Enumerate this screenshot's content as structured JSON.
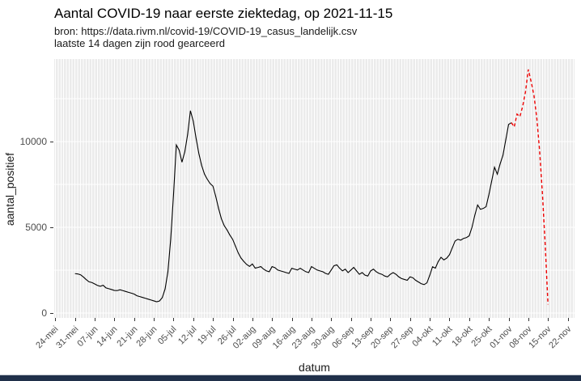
{
  "chart_data": {
    "type": "line",
    "title": "Aantal COVID-19 naar eerste ziektedag, op 2021-11-15",
    "subtitle_source": "bron: https://data.rivm.nl/covid-19/COVID-19_casus_landelijk.csv",
    "subtitle_note": "laatste 14 dagen zijn rood gearceerd",
    "xlabel": "datum",
    "ylabel": "aantal_positief",
    "legend": "none",
    "grid": "white gridlines on grey panel, daily vertical minor lines",
    "x_start_date": "2021-05-24",
    "x_tick_interval_days": 7,
    "x_tick_labels": [
      "24-mei",
      "31-mei",
      "07-jun",
      "14-jun",
      "21-jun",
      "28-jun",
      "05-jul",
      "12-jul",
      "19-jul",
      "26-jul",
      "02-aug",
      "09-aug",
      "16-aug",
      "23-aug",
      "30-aug",
      "06-sep",
      "13-sep",
      "20-sep",
      "27-sep",
      "04-okt",
      "11-okt",
      "18-okt",
      "25-okt",
      "01-nov",
      "08-nov",
      "15-nov",
      "22-nov"
    ],
    "y_ticks": [
      0,
      5000,
      10000
    ],
    "y_tick_labels": [
      "0",
      "5000",
      "10000"
    ],
    "y_minor_gridlines": [
      2500,
      7500,
      12500
    ],
    "ylim": [
      -300,
      14800
    ],
    "colors": {
      "series": "#000000",
      "recent": "#EE0000",
      "panel_bg": "#EBEBEB",
      "gridline": "#FFFFFF",
      "tick_label": "#4D4D4D",
      "bottom_bar": "#20304A"
    },
    "series": [
      {
        "name": "aantal_positief",
        "style": "solid",
        "color_key": "series",
        "points": [
          [
            "2021-05-31",
            2300
          ],
          [
            "2021-06-01",
            2280
          ],
          [
            "2021-06-02",
            2230
          ],
          [
            "2021-06-03",
            2100
          ],
          [
            "2021-06-04",
            1950
          ],
          [
            "2021-06-05",
            1820
          ],
          [
            "2021-06-06",
            1780
          ],
          [
            "2021-06-07",
            1700
          ],
          [
            "2021-06-08",
            1610
          ],
          [
            "2021-06-09",
            1560
          ],
          [
            "2021-06-10",
            1620
          ],
          [
            "2021-06-11",
            1470
          ],
          [
            "2021-06-12",
            1420
          ],
          [
            "2021-06-13",
            1370
          ],
          [
            "2021-06-14",
            1320
          ],
          [
            "2021-06-15",
            1310
          ],
          [
            "2021-06-16",
            1360
          ],
          [
            "2021-06-17",
            1310
          ],
          [
            "2021-06-18",
            1260
          ],
          [
            "2021-06-19",
            1210
          ],
          [
            "2021-06-20",
            1160
          ],
          [
            "2021-06-21",
            1110
          ],
          [
            "2021-06-22",
            1010
          ],
          [
            "2021-06-23",
            960
          ],
          [
            "2021-06-24",
            910
          ],
          [
            "2021-06-25",
            860
          ],
          [
            "2021-06-26",
            810
          ],
          [
            "2021-06-27",
            760
          ],
          [
            "2021-06-28",
            710
          ],
          [
            "2021-06-29",
            660
          ],
          [
            "2021-06-30",
            700
          ],
          [
            "2021-07-01",
            900
          ],
          [
            "2021-07-02",
            1400
          ],
          [
            "2021-07-03",
            2400
          ],
          [
            "2021-07-04",
            4300
          ],
          [
            "2021-07-05",
            6900
          ],
          [
            "2021-07-06",
            9800
          ],
          [
            "2021-07-07",
            9500
          ],
          [
            "2021-07-08",
            8800
          ],
          [
            "2021-07-09",
            9400
          ],
          [
            "2021-07-10",
            10400
          ],
          [
            "2021-07-11",
            11800
          ],
          [
            "2021-07-12",
            11200
          ],
          [
            "2021-07-13",
            10200
          ],
          [
            "2021-07-14",
            9300
          ],
          [
            "2021-07-15",
            8600
          ],
          [
            "2021-07-16",
            8100
          ],
          [
            "2021-07-17",
            7800
          ],
          [
            "2021-07-18",
            7550
          ],
          [
            "2021-07-19",
            7400
          ],
          [
            "2021-07-20",
            6800
          ],
          [
            "2021-07-21",
            6100
          ],
          [
            "2021-07-22",
            5500
          ],
          [
            "2021-07-23",
            5100
          ],
          [
            "2021-07-24",
            4850
          ],
          [
            "2021-07-25",
            4550
          ],
          [
            "2021-07-26",
            4300
          ],
          [
            "2021-07-27",
            3900
          ],
          [
            "2021-07-28",
            3500
          ],
          [
            "2021-07-29",
            3200
          ],
          [
            "2021-07-30",
            3000
          ],
          [
            "2021-07-31",
            2830
          ],
          [
            "2021-08-01",
            2720
          ],
          [
            "2021-08-02",
            2860
          ],
          [
            "2021-08-03",
            2620
          ],
          [
            "2021-08-04",
            2660
          ],
          [
            "2021-08-05",
            2710
          ],
          [
            "2021-08-06",
            2560
          ],
          [
            "2021-08-07",
            2460
          ],
          [
            "2021-08-08",
            2410
          ],
          [
            "2021-08-09",
            2710
          ],
          [
            "2021-08-10",
            2650
          ],
          [
            "2021-08-11",
            2510
          ],
          [
            "2021-08-12",
            2460
          ],
          [
            "2021-08-13",
            2410
          ],
          [
            "2021-08-14",
            2360
          ],
          [
            "2021-08-15",
            2310
          ],
          [
            "2021-08-16",
            2610
          ],
          [
            "2021-08-17",
            2560
          ],
          [
            "2021-08-18",
            2510
          ],
          [
            "2021-08-19",
            2610
          ],
          [
            "2021-08-20",
            2510
          ],
          [
            "2021-08-21",
            2410
          ],
          [
            "2021-08-22",
            2360
          ],
          [
            "2021-08-23",
            2710
          ],
          [
            "2021-08-24",
            2610
          ],
          [
            "2021-08-25",
            2510
          ],
          [
            "2021-08-26",
            2460
          ],
          [
            "2021-08-27",
            2410
          ],
          [
            "2021-08-28",
            2310
          ],
          [
            "2021-08-29",
            2260
          ],
          [
            "2021-08-30",
            2510
          ],
          [
            "2021-08-31",
            2760
          ],
          [
            "2021-09-01",
            2810
          ],
          [
            "2021-09-02",
            2610
          ],
          [
            "2021-09-03",
            2460
          ],
          [
            "2021-09-04",
            2560
          ],
          [
            "2021-09-05",
            2360
          ],
          [
            "2021-09-06",
            2510
          ],
          [
            "2021-09-07",
            2660
          ],
          [
            "2021-09-08",
            2460
          ],
          [
            "2021-09-09",
            2260
          ],
          [
            "2021-09-10",
            2360
          ],
          [
            "2021-09-11",
            2210
          ],
          [
            "2021-09-12",
            2160
          ],
          [
            "2021-09-13",
            2460
          ],
          [
            "2021-09-14",
            2560
          ],
          [
            "2021-09-15",
            2410
          ],
          [
            "2021-09-16",
            2310
          ],
          [
            "2021-09-17",
            2260
          ],
          [
            "2021-09-18",
            2160
          ],
          [
            "2021-09-19",
            2110
          ],
          [
            "2021-09-20",
            2260
          ],
          [
            "2021-09-21",
            2360
          ],
          [
            "2021-09-22",
            2260
          ],
          [
            "2021-09-23",
            2110
          ],
          [
            "2021-09-24",
            2010
          ],
          [
            "2021-09-25",
            1960
          ],
          [
            "2021-09-26",
            1910
          ],
          [
            "2021-09-27",
            2110
          ],
          [
            "2021-09-28",
            2060
          ],
          [
            "2021-09-29",
            1910
          ],
          [
            "2021-09-30",
            1810
          ],
          [
            "2021-10-01",
            1710
          ],
          [
            "2021-10-02",
            1660
          ],
          [
            "2021-10-03",
            1760
          ],
          [
            "2021-10-04",
            2200
          ],
          [
            "2021-10-05",
            2700
          ],
          [
            "2021-10-06",
            2620
          ],
          [
            "2021-10-07",
            3000
          ],
          [
            "2021-10-08",
            3250
          ],
          [
            "2021-10-09",
            3100
          ],
          [
            "2021-10-10",
            3200
          ],
          [
            "2021-10-11",
            3400
          ],
          [
            "2021-10-12",
            3800
          ],
          [
            "2021-10-13",
            4200
          ],
          [
            "2021-10-14",
            4300
          ],
          [
            "2021-10-15",
            4250
          ],
          [
            "2021-10-16",
            4350
          ],
          [
            "2021-10-17",
            4400
          ],
          [
            "2021-10-18",
            4500
          ],
          [
            "2021-10-19",
            5000
          ],
          [
            "2021-10-20",
            5700
          ],
          [
            "2021-10-21",
            6300
          ],
          [
            "2021-10-22",
            6050
          ],
          [
            "2021-10-23",
            6100
          ],
          [
            "2021-10-24",
            6200
          ],
          [
            "2021-10-25",
            6900
          ],
          [
            "2021-10-26",
            7700
          ],
          [
            "2021-10-27",
            8500
          ],
          [
            "2021-10-28",
            8100
          ],
          [
            "2021-10-29",
            8700
          ],
          [
            "2021-10-30",
            9200
          ],
          [
            "2021-10-31",
            10100
          ],
          [
            "2021-11-01",
            11000
          ],
          [
            "2021-11-02",
            11100
          ]
        ]
      },
      {
        "name": "laatste_14_dagen",
        "style": "dashed",
        "color_key": "recent",
        "points": [
          [
            "2021-11-02",
            11100
          ],
          [
            "2021-11-03",
            10850
          ],
          [
            "2021-11-04",
            11600
          ],
          [
            "2021-11-05",
            11450
          ],
          [
            "2021-11-06",
            12050
          ],
          [
            "2021-11-07",
            12900
          ],
          [
            "2021-11-08",
            14200
          ],
          [
            "2021-11-09",
            13500
          ],
          [
            "2021-11-10",
            12700
          ],
          [
            "2021-11-11",
            11400
          ],
          [
            "2021-11-12",
            9500
          ],
          [
            "2021-11-13",
            7000
          ],
          [
            "2021-11-14",
            4000
          ],
          [
            "2021-11-15",
            500
          ]
        ]
      }
    ]
  }
}
